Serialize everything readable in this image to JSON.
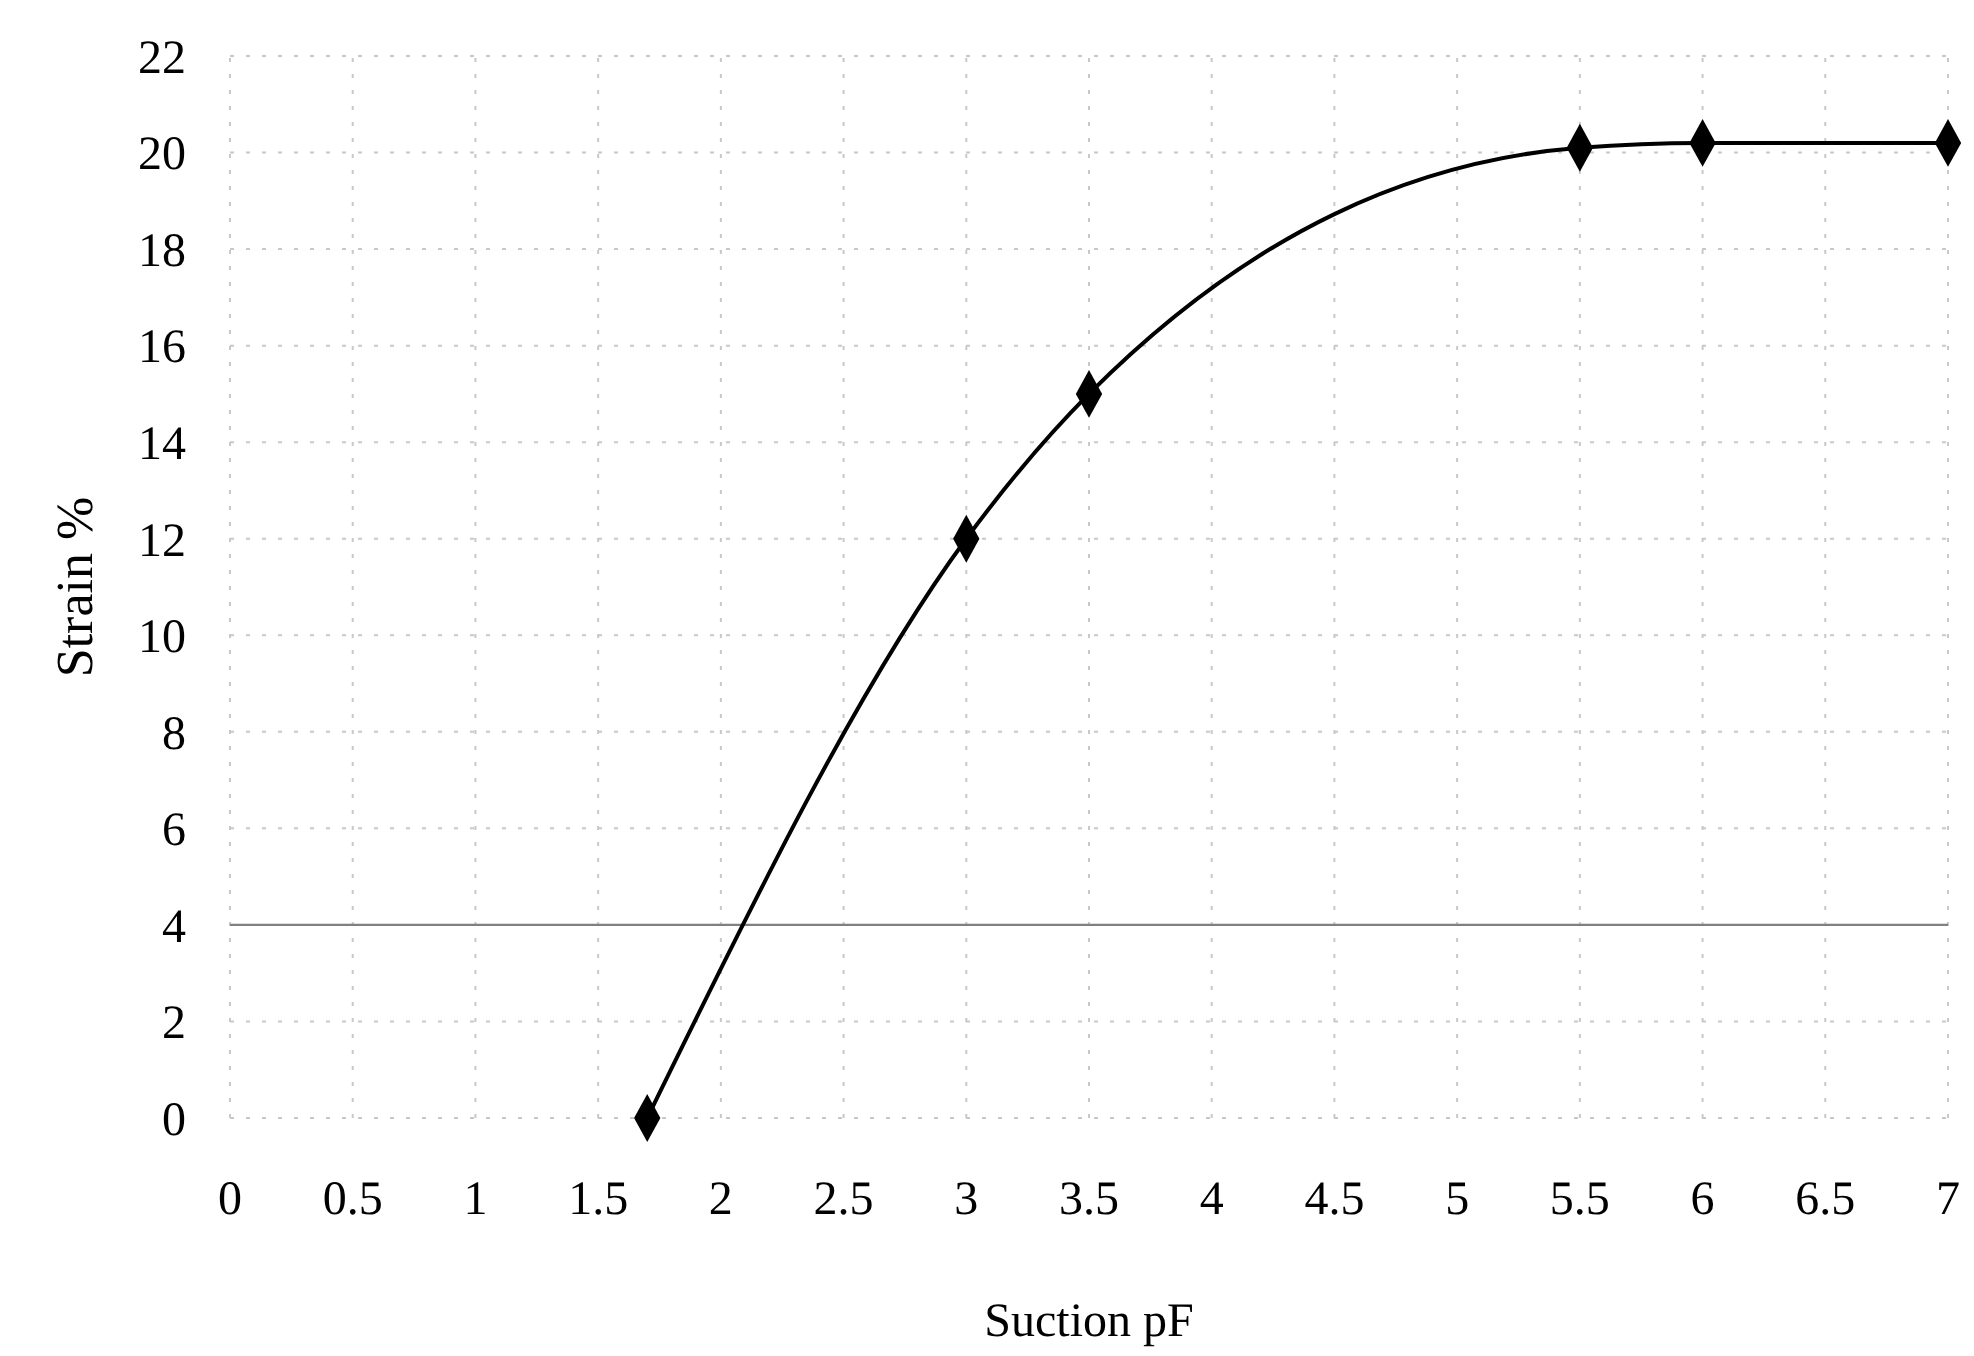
{
  "chart_data": {
    "type": "line",
    "xlabel": "Suction pF",
    "ylabel": "Strain %",
    "x": [
      1.7,
      3,
      3.5,
      5.5,
      6,
      7
    ],
    "series": [
      {
        "color": "#000000",
        "values": [
          0,
          12,
          15,
          20.1,
          20.2,
          20.2
        ]
      }
    ],
    "xlim": [
      0,
      7
    ],
    "xticks": [
      0,
      0.5,
      1,
      1.5,
      2,
      2.5,
      3,
      3.5,
      4,
      4.5,
      5,
      5.5,
      6,
      6.5,
      7
    ],
    "ylim": [
      0,
      22
    ],
    "yticks": [
      0,
      2,
      4,
      6,
      8,
      10,
      12,
      14,
      16,
      18,
      20,
      22
    ],
    "grid": true,
    "marker": "diamond",
    "line_style": "solid",
    "ref_lines": [
      {
        "axis": "y",
        "value": 4,
        "color": "#808080"
      }
    ]
  }
}
